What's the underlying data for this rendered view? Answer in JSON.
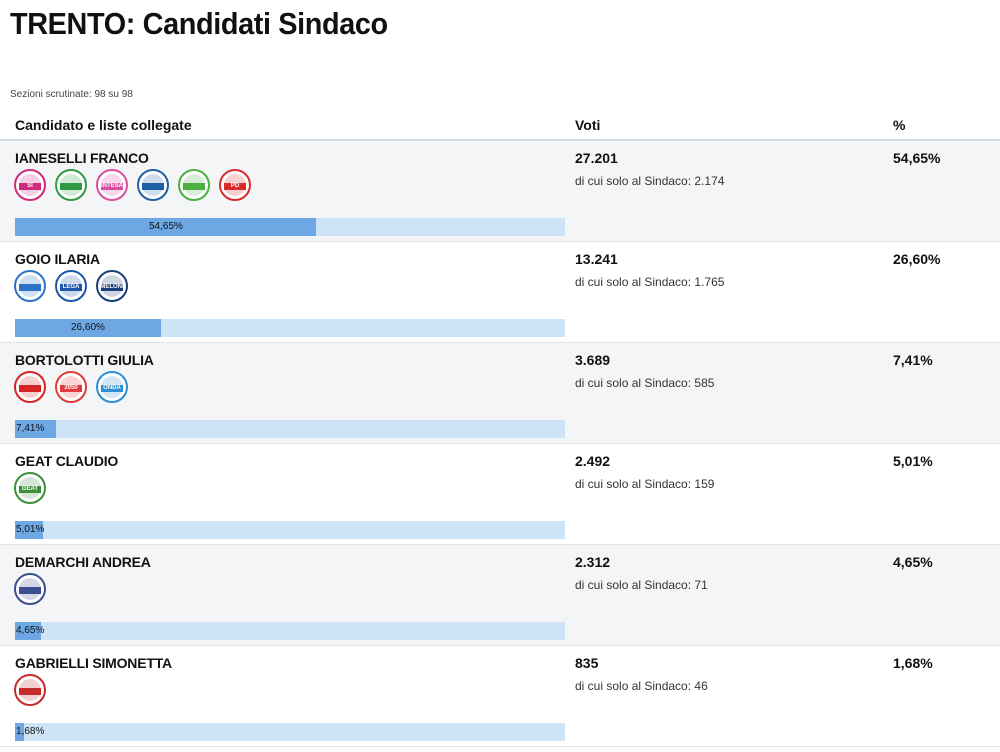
{
  "page": {
    "title": "TRENTO: Candidati Sindaco",
    "subtitle": "Sezioni scrutinate: 98 su 98"
  },
  "table": {
    "headers": {
      "candidate": "Candidato e liste collegate",
      "votes": "Voti",
      "percent": "%"
    },
    "rows": [
      {
        "name": "IANESELLI FRANCO",
        "votes": "27.201",
        "solo_sindaco": "di cui solo al Sindaco: 2.174",
        "percent": "54,65%",
        "bar_label": "54,65%",
        "bar_fraction": 0.5465,
        "logos": [
          {
            "icon": "si-party-logo-icon",
            "color": "#cf2a7d",
            "text": "SI"
          },
          {
            "icon": "citta-party-logo-icon",
            "color": "#2f9a44",
            "text": ""
          },
          {
            "icon": "intesa-party-logo-icon",
            "color": "#d94ea0",
            "text": "INTESA"
          },
          {
            "icon": "ianeselli-list-logo-icon",
            "color": "#1f5fa3",
            "text": ""
          },
          {
            "icon": "green-list-logo-icon",
            "color": "#4caf3f",
            "text": ""
          },
          {
            "icon": "pd-party-logo-icon",
            "color": "#d92b2b",
            "text": "PD"
          }
        ]
      },
      {
        "name": "GOIO ILARIA",
        "votes": "13.241",
        "solo_sindaco": "di cui solo al Sindaco: 1.765",
        "percent": "26,60%",
        "bar_label": "26,60%",
        "bar_fraction": 0.266,
        "logos": [
          {
            "icon": "forza-italia-logo-icon",
            "color": "#2a74c7",
            "text": ""
          },
          {
            "icon": "lega-salvini-logo-icon",
            "color": "#1e56a8",
            "text": "LEGA"
          },
          {
            "icon": "fratelli-italia-meloni-logo-icon",
            "color": "#1b3d7a",
            "text": "MELONI"
          }
        ]
      },
      {
        "name": "BORTOLOTTI GIULIA",
        "votes": "3.689",
        "solo_sindaco": "di cui solo al Sindaco: 585",
        "percent": "7,41%",
        "bar_label": "7,41%",
        "bar_fraction": 0.0741,
        "logos": [
          {
            "icon": "rifondazione-logo-icon",
            "color": "#d62424",
            "text": ""
          },
          {
            "icon": "movimento-2050-logo-icon",
            "color": "#e23b3b",
            "text": "2050"
          },
          {
            "icon": "onda-logo-icon",
            "color": "#2e8fd0",
            "text": "ONDA"
          }
        ]
      },
      {
        "name": "GEAT CLAUDIO",
        "votes": "2.492",
        "solo_sindaco": "di cui solo al Sindaco: 159",
        "percent": "5,01%",
        "bar_label": "5,01%",
        "bar_fraction": 0.0501,
        "logos": [
          {
            "icon": "generazione-geat-logo-icon",
            "color": "#3b8f3a",
            "text": "GEAT"
          }
        ]
      },
      {
        "name": "DEMARCHI ANDREA",
        "votes": "2.312",
        "solo_sindaco": "di cui solo al Sindaco: 71",
        "percent": "4,65%",
        "bar_label": "4,65%",
        "bar_fraction": 0.0465,
        "logos": [
          {
            "icon": "demarchi-list-logo-icon",
            "color": "#3a4f8f",
            "text": ""
          }
        ]
      },
      {
        "name": "GABRIELLI SIMONETTA",
        "votes": "835",
        "solo_sindaco": "di cui solo al Sindaco: 46",
        "percent": "1,68%",
        "bar_label": "1,68%",
        "bar_fraction": 0.0168,
        "logos": [
          {
            "icon": "socialista-popolare-logo-icon",
            "color": "#c72b2b",
            "text": ""
          }
        ]
      }
    ]
  },
  "colors": {
    "bar_fill": "#6ea8e4",
    "bar_track": "#cfe3f7"
  }
}
